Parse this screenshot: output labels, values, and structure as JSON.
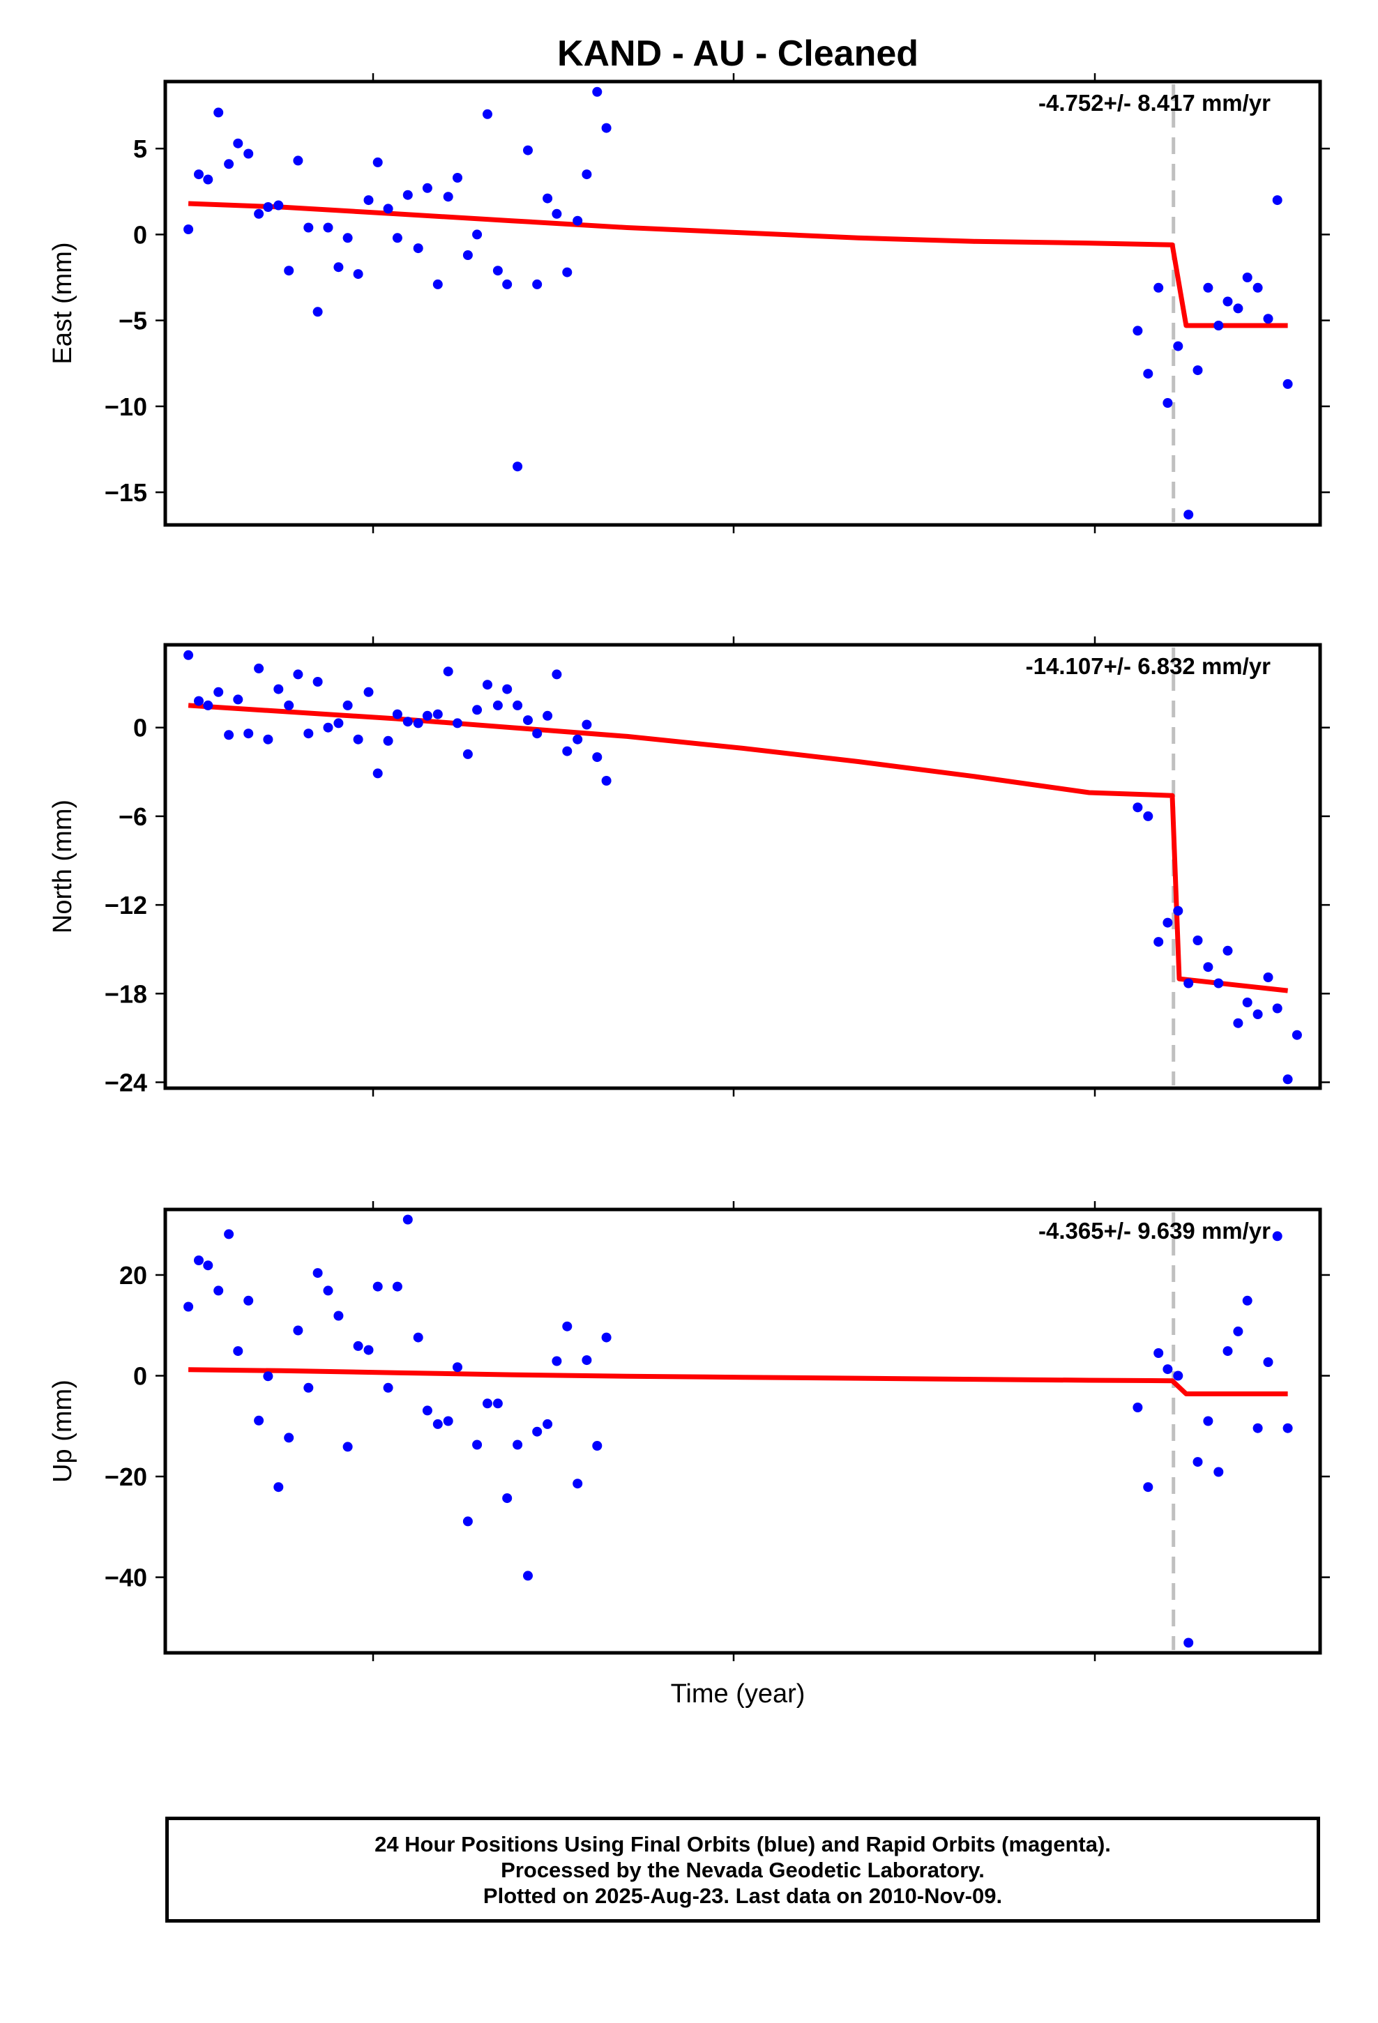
{
  "title": "KAND  - AU - Cleaned",
  "xlabel": "Time (year)",
  "colors": {
    "final_points": "#0000ff",
    "model": "#ff0000",
    "event_line": "#c0c0c0",
    "frame": "#000000"
  },
  "chart_data": [
    {
      "type": "scatter",
      "name": "east",
      "ylabel": "East (mm)",
      "rate_label": "-4.752+/- 8.417 mm/yr",
      "ylim": [
        -16.9,
        8.9
      ],
      "yticks": [
        5,
        0,
        -5,
        -10,
        -15
      ],
      "ytick_labels": [
        "5",
        "0",
        "−5",
        "−10",
        "−15"
      ],
      "xlim": [
        0,
        100
      ],
      "event_x": 87.3,
      "points": [
        [
          2.0,
          0.3
        ],
        [
          2.9,
          3.5
        ],
        [
          3.7,
          3.2
        ],
        [
          4.6,
          7.1
        ],
        [
          5.5,
          4.1
        ],
        [
          6.3,
          5.3
        ],
        [
          7.2,
          4.7
        ],
        [
          8.1,
          1.2
        ],
        [
          8.9,
          1.6
        ],
        [
          9.8,
          1.7
        ],
        [
          10.7,
          -2.1
        ],
        [
          11.5,
          4.3
        ],
        [
          12.4,
          0.4
        ],
        [
          13.2,
          -4.5
        ],
        [
          14.1,
          0.4
        ],
        [
          15.0,
          -1.9
        ],
        [
          15.8,
          -0.2
        ],
        [
          16.7,
          -2.3
        ],
        [
          17.6,
          2.0
        ],
        [
          18.4,
          4.2
        ],
        [
          19.3,
          1.5
        ],
        [
          20.1,
          -0.2
        ],
        [
          21.0,
          2.3
        ],
        [
          21.9,
          -0.8
        ],
        [
          22.7,
          2.7
        ],
        [
          23.6,
          -2.9
        ],
        [
          24.5,
          2.2
        ],
        [
          25.3,
          3.3
        ],
        [
          26.2,
          -1.2
        ],
        [
          27.0,
          0.0
        ],
        [
          27.9,
          7.0
        ],
        [
          28.8,
          -2.1
        ],
        [
          29.6,
          -2.9
        ],
        [
          30.5,
          -13.5
        ],
        [
          31.4,
          4.9
        ],
        [
          32.2,
          -2.9
        ],
        [
          33.1,
          2.1
        ],
        [
          33.9,
          1.2
        ],
        [
          34.8,
          -2.2
        ],
        [
          35.7,
          0.8
        ],
        [
          36.5,
          3.5
        ],
        [
          37.4,
          8.3
        ],
        [
          38.2,
          6.2
        ],
        [
          84.2,
          -5.6
        ],
        [
          85.1,
          -8.1
        ],
        [
          86.0,
          -3.1
        ],
        [
          86.8,
          -9.8
        ],
        [
          87.7,
          -6.5
        ],
        [
          88.6,
          -16.3
        ],
        [
          89.4,
          -7.9
        ],
        [
          90.3,
          -3.1
        ],
        [
          91.2,
          -5.3
        ],
        [
          92.0,
          -3.9
        ],
        [
          92.9,
          -4.3
        ],
        [
          93.7,
          -2.5
        ],
        [
          94.6,
          -3.1
        ],
        [
          95.5,
          -4.9
        ],
        [
          96.3,
          2.0
        ],
        [
          97.2,
          -8.7
        ]
      ],
      "model": [
        [
          2.0,
          1.8
        ],
        [
          10.0,
          1.6
        ],
        [
          20.0,
          1.2
        ],
        [
          30.0,
          0.8
        ],
        [
          40.0,
          0.4
        ],
        [
          50.0,
          0.1
        ],
        [
          60.0,
          -0.2
        ],
        [
          70.0,
          -0.4
        ],
        [
          80.0,
          -0.5
        ],
        [
          87.2,
          -0.6
        ],
        [
          88.4,
          -5.3
        ],
        [
          97.2,
          -5.3
        ]
      ]
    },
    {
      "type": "scatter",
      "name": "north",
      "ylabel": "North (mm)",
      "rate_label": "-14.107+/- 6.832 mm/yr",
      "ylim": [
        -24.4,
        5.6
      ],
      "yticks": [
        0,
        -6,
        -12,
        -18,
        -24
      ],
      "ytick_labels": [
        "0",
        "−6",
        "−12",
        "−18",
        "−24"
      ],
      "xlim": [
        0,
        100
      ],
      "event_x": 87.3,
      "points": [
        [
          2.0,
          4.9
        ],
        [
          2.9,
          1.8
        ],
        [
          3.7,
          1.5
        ],
        [
          4.6,
          2.4
        ],
        [
          5.5,
          -0.5
        ],
        [
          6.3,
          1.9
        ],
        [
          7.2,
          -0.4
        ],
        [
          8.1,
          4.0
        ],
        [
          8.9,
          -0.8
        ],
        [
          9.8,
          2.6
        ],
        [
          10.7,
          1.5
        ],
        [
          11.5,
          3.6
        ],
        [
          12.4,
          -0.4
        ],
        [
          13.2,
          3.1
        ],
        [
          14.1,
          0.0
        ],
        [
          15.0,
          0.3
        ],
        [
          15.8,
          1.5
        ],
        [
          16.7,
          -0.8
        ],
        [
          17.6,
          2.4
        ],
        [
          18.4,
          -3.1
        ],
        [
          19.3,
          -0.9
        ],
        [
          20.1,
          0.9
        ],
        [
          21.0,
          0.4
        ],
        [
          21.9,
          0.3
        ],
        [
          22.7,
          0.8
        ],
        [
          23.6,
          0.9
        ],
        [
          24.5,
          3.8
        ],
        [
          25.3,
          0.3
        ],
        [
          26.2,
          -1.8
        ],
        [
          27.0,
          1.2
        ],
        [
          27.9,
          2.9
        ],
        [
          28.8,
          1.5
        ],
        [
          29.6,
          2.6
        ],
        [
          30.5,
          1.5
        ],
        [
          31.4,
          0.5
        ],
        [
          32.2,
          -0.4
        ],
        [
          33.1,
          0.8
        ],
        [
          33.9,
          3.6
        ],
        [
          34.8,
          -1.6
        ],
        [
          35.7,
          -0.8
        ],
        [
          36.5,
          0.2
        ],
        [
          37.4,
          -2.0
        ],
        [
          38.2,
          -3.6
        ],
        [
          84.2,
          -5.4
        ],
        [
          85.1,
          -6.0
        ],
        [
          86.0,
          -14.5
        ],
        [
          86.8,
          -13.2
        ],
        [
          87.7,
          -12.4
        ],
        [
          88.6,
          -17.3
        ],
        [
          89.4,
          -14.4
        ],
        [
          90.3,
          -16.2
        ],
        [
          91.2,
          -17.3
        ],
        [
          92.0,
          -15.1
        ],
        [
          92.9,
          -20.0
        ],
        [
          93.7,
          -18.6
        ],
        [
          94.6,
          -19.4
        ],
        [
          95.5,
          -16.9
        ],
        [
          96.3,
          -19.0
        ],
        [
          97.2,
          -23.8
        ],
        [
          98.0,
          -20.8
        ]
      ],
      "model": [
        [
          2.0,
          1.5
        ],
        [
          10.0,
          1.1
        ],
        [
          20.0,
          0.6
        ],
        [
          30.0,
          0.0
        ],
        [
          40.0,
          -0.6
        ],
        [
          50.0,
          -1.4
        ],
        [
          60.0,
          -2.3
        ],
        [
          70.0,
          -3.3
        ],
        [
          80.0,
          -4.4
        ],
        [
          87.2,
          -4.6
        ],
        [
          87.8,
          -17.0
        ],
        [
          97.2,
          -17.8
        ]
      ]
    },
    {
      "type": "scatter",
      "name": "up",
      "ylabel": "Up (mm)",
      "rate_label": "-4.365+/- 9.639 mm/yr",
      "ylim": [
        -55.0,
        33.0
      ],
      "yticks": [
        20,
        0,
        -20,
        -40
      ],
      "ytick_labels": [
        "20",
        "0",
        "−20",
        "−40"
      ],
      "xlim": [
        0,
        100
      ],
      "event_x": 87.3,
      "points": [
        [
          2.0,
          13.7
        ],
        [
          2.9,
          22.9
        ],
        [
          3.7,
          21.9
        ],
        [
          4.6,
          16.9
        ],
        [
          5.5,
          28.1
        ],
        [
          6.3,
          4.9
        ],
        [
          7.2,
          14.9
        ],
        [
          8.1,
          -8.9
        ],
        [
          8.9,
          -0.1
        ],
        [
          9.8,
          -22.1
        ],
        [
          10.7,
          -12.3
        ],
        [
          11.5,
          9.0
        ],
        [
          12.4,
          -2.4
        ],
        [
          13.2,
          20.4
        ],
        [
          14.1,
          16.9
        ],
        [
          15.0,
          11.9
        ],
        [
          15.8,
          -14.1
        ],
        [
          16.7,
          5.9
        ],
        [
          17.6,
          5.1
        ],
        [
          18.4,
          17.7
        ],
        [
          19.3,
          -2.4
        ],
        [
          20.1,
          17.7
        ],
        [
          21.0,
          31.0
        ],
        [
          21.9,
          7.6
        ],
        [
          22.7,
          -6.9
        ],
        [
          23.6,
          -9.6
        ],
        [
          24.5,
          -9.0
        ],
        [
          25.3,
          1.7
        ],
        [
          26.2,
          -28.9
        ],
        [
          27.0,
          -13.7
        ],
        [
          27.9,
          -5.5
        ],
        [
          28.8,
          -5.5
        ],
        [
          29.6,
          -24.3
        ],
        [
          30.5,
          -13.7
        ],
        [
          31.4,
          -39.7
        ],
        [
          32.2,
          -11.1
        ],
        [
          33.1,
          -9.6
        ],
        [
          33.9,
          2.9
        ],
        [
          34.8,
          9.8
        ],
        [
          35.7,
          -21.4
        ],
        [
          36.5,
          3.1
        ],
        [
          37.4,
          -13.9
        ],
        [
          38.2,
          7.6
        ],
        [
          84.2,
          -6.3
        ],
        [
          85.1,
          -22.1
        ],
        [
          86.0,
          4.5
        ],
        [
          86.8,
          1.3
        ],
        [
          87.7,
          0.0
        ],
        [
          88.6,
          -53.0
        ],
        [
          89.4,
          -17.1
        ],
        [
          90.3,
          -9.0
        ],
        [
          91.2,
          -19.1
        ],
        [
          92.0,
          4.9
        ],
        [
          92.9,
          8.8
        ],
        [
          93.7,
          14.9
        ],
        [
          94.6,
          -10.4
        ],
        [
          95.5,
          2.7
        ],
        [
          96.3,
          27.7
        ],
        [
          97.2,
          -10.4
        ]
      ],
      "model": [
        [
          2.0,
          1.2
        ],
        [
          10.0,
          1.0
        ],
        [
          20.0,
          0.6
        ],
        [
          30.0,
          0.2
        ],
        [
          40.0,
          -0.1
        ],
        [
          50.0,
          -0.3
        ],
        [
          60.0,
          -0.5
        ],
        [
          70.0,
          -0.7
        ],
        [
          80.0,
          -0.9
        ],
        [
          87.2,
          -1.0
        ],
        [
          88.4,
          -3.6
        ],
        [
          97.2,
          -3.6
        ]
      ]
    }
  ],
  "footer": {
    "line1": "24 Hour Positions Using Final Orbits (blue) and Rapid Orbits (magenta).",
    "line2": "Processed by the Nevada Geodetic Laboratory.",
    "line3": "Plotted on 2025-Aug-23. Last data on 2010-Nov-09."
  }
}
